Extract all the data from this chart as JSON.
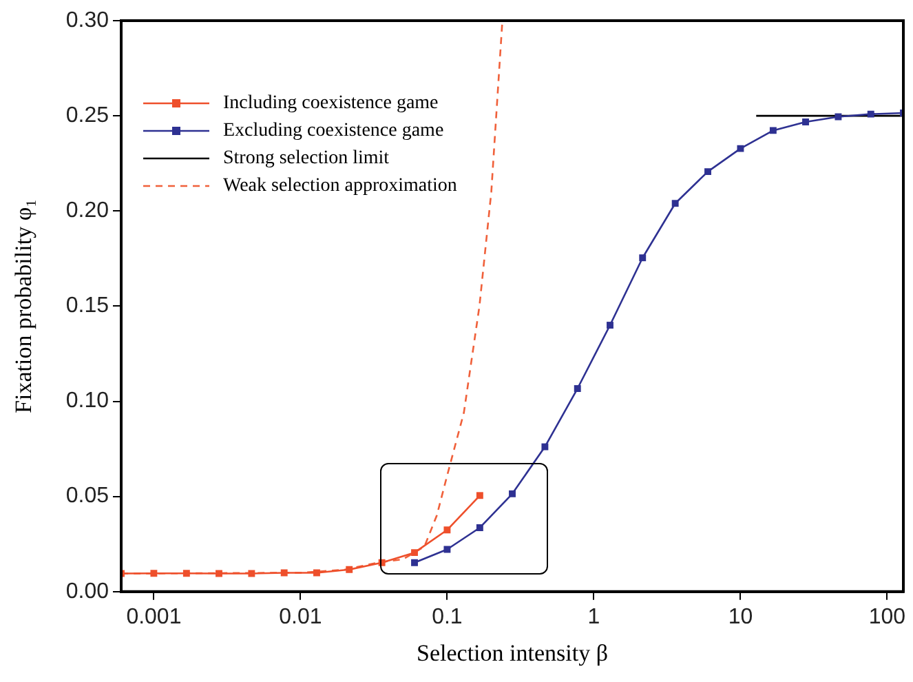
{
  "chart_data": {
    "type": "line",
    "xlabel": "Selection intensity β",
    "ylabel": "Fixation probability φ₁",
    "log": "x",
    "xlim": [
      0.000599,
      129
    ],
    "xticks": [
      0.001,
      0.01,
      0.1,
      1,
      10,
      100
    ],
    "ylim": [
      0,
      0.3
    ],
    "yticks": [
      {
        "value": 0,
        "label": "0.00"
      },
      {
        "value": 0.05,
        "label": "0.05"
      },
      {
        "value": 0.1,
        "label": "0.10"
      },
      {
        "value": 0.15,
        "label": "0.15"
      },
      {
        "value": 0.2,
        "label": "0.20"
      },
      {
        "value": 0.25,
        "label": "0.25"
      },
      {
        "value": 0.3,
        "label": "0.30"
      }
    ],
    "grid": false,
    "legend": "top left",
    "series": [
      {
        "name": "Including coexistence game",
        "color": "#ee4f2b",
        "marker": "square",
        "line_style": "solid",
        "x": [
          0.000599,
          0.001,
          0.00167,
          0.00278,
          0.00464,
          0.00774,
          0.0129,
          0.0215,
          0.0359,
          0.0599,
          0.1,
          0.167
        ],
        "values": [
          0.0095,
          0.0096,
          0.0096,
          0.0095,
          0.0095,
          0.0099,
          0.0099,
          0.0116,
          0.0152,
          0.0205,
          0.0324,
          0.0505
        ]
      },
      {
        "name": "Excluding coexistence game",
        "color": "#2e3192",
        "marker": "square",
        "line_style": "solid",
        "x": [
          0.0599,
          0.1,
          0.167,
          0.278,
          0.464,
          0.774,
          1.29,
          2.15,
          3.59,
          5.99,
          10,
          16.7,
          27.8,
          46.4,
          77.4,
          129
        ],
        "values": [
          0.0152,
          0.0222,
          0.0336,
          0.0514,
          0.0761,
          0.1067,
          0.14,
          0.1754,
          0.204,
          0.2207,
          0.2328,
          0.2423,
          0.2468,
          0.2495,
          0.2509,
          0.2515
        ]
      },
      {
        "name": "Strong selection limit",
        "color": "#000000",
        "marker": "none",
        "line_style": "solid",
        "x": [
          12.8,
          129
        ],
        "values": [
          0.25,
          0.25
        ]
      },
      {
        "name": "Weak selection approximation",
        "color": "#f0603a",
        "marker": "none",
        "line_style": "dashed",
        "x": [
          0.0006,
          0.01,
          0.02,
          0.035,
          0.05,
          0.07,
          0.085,
          0.1,
          0.13,
          0.166,
          0.2,
          0.238
        ],
        "values": [
          0.0095,
          0.0099,
          0.0115,
          0.0155,
          0.017,
          0.0237,
          0.04,
          0.061,
          0.094,
          0.15,
          0.21,
          0.3
        ]
      }
    ]
  }
}
